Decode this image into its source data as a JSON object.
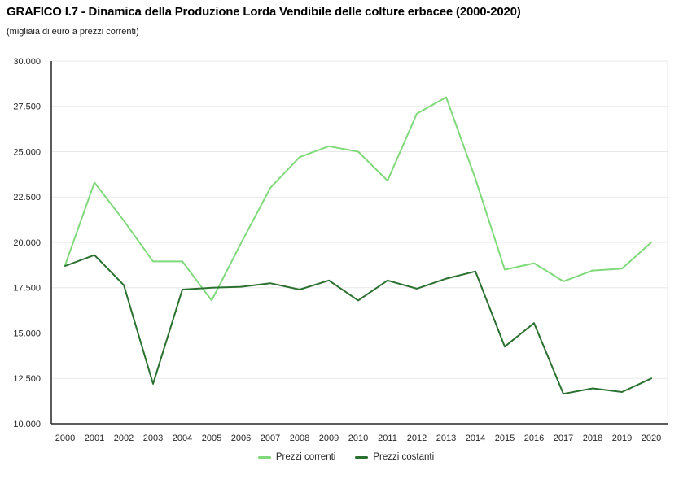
{
  "header": {
    "title": "GRAFICO I.7 - Dinamica della Produzione Lorda Vendibile delle colture erbacee (2000-2020)",
    "subtitle": "(migliaia di euro a prezzi correnti)"
  },
  "colors": {
    "prezzi_correnti": "#80d97a",
    "prezzi_costanti": "#2a7130",
    "gridline": "#e8e8e8",
    "axis_line": "#262626",
    "tick_text": "#262626"
  },
  "chart_data": {
    "type": "line",
    "title": "GRAFICO I.7 - Dinamica della Produzione Lorda Vendibile delle colture erbacee (2000-2020)",
    "subtitle": "(migliaia di euro a prezzi correnti)",
    "xlabel": "",
    "ylabel": "",
    "categories": [
      "2000",
      "2001",
      "2002",
      "2003",
      "2004",
      "2005",
      "2006",
      "2007",
      "2008",
      "2009",
      "2010",
      "2011",
      "2012",
      "2013",
      "2014",
      "2015",
      "2016",
      "2017",
      "2018",
      "2019",
      "2020"
    ],
    "series": [
      {
        "name": "Prezzi correnti",
        "color": "#80d97a",
        "values": [
          18750,
          23300,
          21200,
          18950,
          18950,
          16800,
          19950,
          23000,
          24700,
          25300,
          25000,
          23400,
          27100,
          28000,
          23500,
          18500,
          18850,
          17850,
          18450,
          18550,
          20000
        ]
      },
      {
        "name": "Prezzi costanti",
        "color": "#2a7130",
        "values": [
          18700,
          19300,
          17650,
          12200,
          17400,
          17500,
          17550,
          17750,
          17400,
          17900,
          16800,
          17900,
          17450,
          18000,
          18400,
          14250,
          15550,
          11650,
          11950,
          11750,
          12500
        ]
      }
    ],
    "ylim": [
      10000,
      30000
    ],
    "ytick_step": 2500,
    "ytick_labels": [
      "10.000",
      "12.500",
      "15.000",
      "17.500",
      "20.000",
      "22.500",
      "25.000",
      "27.500",
      "30.000"
    ],
    "grid": "horizontal",
    "legend_position": "bottom"
  },
  "legend": {
    "items": [
      {
        "label": "Prezzi correnti",
        "color": "#80d97a"
      },
      {
        "label": "Prezzi costanti",
        "color": "#2a7130"
      }
    ]
  }
}
